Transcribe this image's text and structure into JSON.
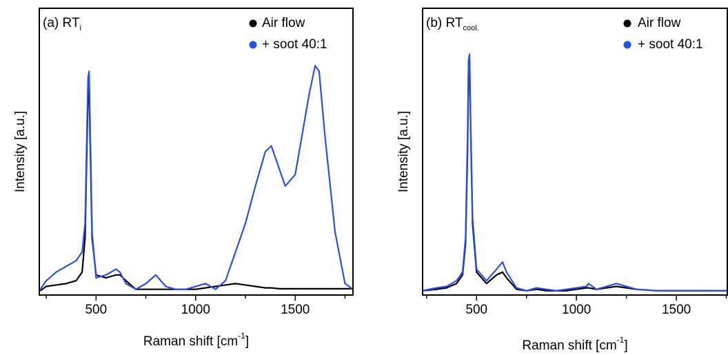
{
  "chart_data": [
    {
      "type": "line",
      "title": "(a) RT",
      "title_subscript": "i",
      "x_label": "Raman shift [cm",
      "x_label_superscript": "-1",
      "x_label_end": "]",
      "y_label": "Intensity [a.u.]",
      "xlim": [
        215,
        1790
      ],
      "xticks": [
        500,
        1000,
        1500
      ],
      "xminorticks": [
        250,
        750,
        1250,
        1750
      ],
      "ylim": [
        0,
        100
      ],
      "legend": "top-right",
      "x": [
        220,
        250,
        300,
        350,
        400,
        430,
        445,
        455,
        460,
        465,
        470,
        480,
        500,
        550,
        600,
        620,
        650,
        700,
        750,
        800,
        850,
        900,
        950,
        1000,
        1050,
        1100,
        1150,
        1200,
        1250,
        1300,
        1350,
        1380,
        1420,
        1450,
        1500,
        1550,
        1570,
        1600,
        1620,
        1650,
        1700,
        1750,
        1790
      ],
      "series": [
        {
          "name": "Air flow",
          "color": "#000000",
          "values": [
            1.5,
            3,
            3.5,
            4,
            5,
            8,
            20,
            55,
            70,
            74,
            55,
            20,
            7,
            6,
            7,
            7,
            5,
            2,
            2,
            2,
            2,
            2,
            2,
            2,
            2.5,
            3,
            3.5,
            4,
            3.5,
            3,
            2.5,
            2.5,
            2.2,
            2.2,
            2.2,
            2.2,
            2.2,
            2.2,
            2.2,
            2.2,
            2.2,
            2.2,
            2.2
          ]
        },
        {
          "name": "+ soot 40:1",
          "color": "#2b4ee6",
          "values": [
            2,
            5,
            8,
            10,
            12,
            15,
            25,
            60,
            76,
            78,
            60,
            22,
            6,
            7,
            9,
            8,
            4,
            2,
            4,
            7,
            3,
            2,
            2,
            3,
            4,
            2,
            5,
            15,
            25,
            38,
            50,
            52,
            44,
            38,
            42,
            62,
            70,
            80,
            78,
            55,
            22,
            4,
            2
          ]
        }
      ]
    },
    {
      "type": "line",
      "title": "(b) RT",
      "title_subscript": "cool.",
      "x_label": "Raman shift [cm",
      "x_label_superscript": "-1",
      "x_label_end": "]",
      "y_label": "Intensity [a.u.]",
      "xlim": [
        230,
        1755
      ],
      "xticks": [
        500,
        1000,
        1500
      ],
      "xminorticks": [
        250,
        750,
        1250,
        1750
      ],
      "ylim": [
        0,
        100
      ],
      "legend": "top-right",
      "x": [
        230,
        300,
        350,
        400,
        430,
        445,
        455,
        460,
        465,
        470,
        480,
        500,
        550,
        600,
        630,
        650,
        700,
        750,
        800,
        850,
        900,
        950,
        1000,
        1050,
        1060,
        1100,
        1150,
        1200,
        1250,
        1300,
        1400,
        1500,
        1600,
        1700,
        1755
      ],
      "series": [
        {
          "name": "Air flow",
          "color": "#000000",
          "values": [
            1.5,
            2,
            2.5,
            4,
            7,
            18,
            50,
            78,
            82,
            60,
            25,
            8,
            4,
            7,
            8,
            6,
            2,
            1.5,
            2,
            1.5,
            1.5,
            1.5,
            2,
            2.5,
            2.5,
            2,
            2.5,
            3,
            2.5,
            2,
            1.5,
            1.5,
            1.5,
            1.5,
            1.5
          ]
        },
        {
          "name": "+ soot 40:1",
          "color": "#2b4ee6",
          "values": [
            1.5,
            2.5,
            3,
            5,
            8,
            20,
            55,
            82,
            84,
            62,
            27,
            9,
            5,
            9,
            11.5,
            8,
            2.5,
            1.5,
            2.5,
            2,
            1.5,
            2,
            2.5,
            3,
            4,
            2,
            3,
            4,
            3,
            2,
            1.5,
            1.5,
            1.5,
            1.5,
            1.5
          ]
        }
      ]
    }
  ]
}
